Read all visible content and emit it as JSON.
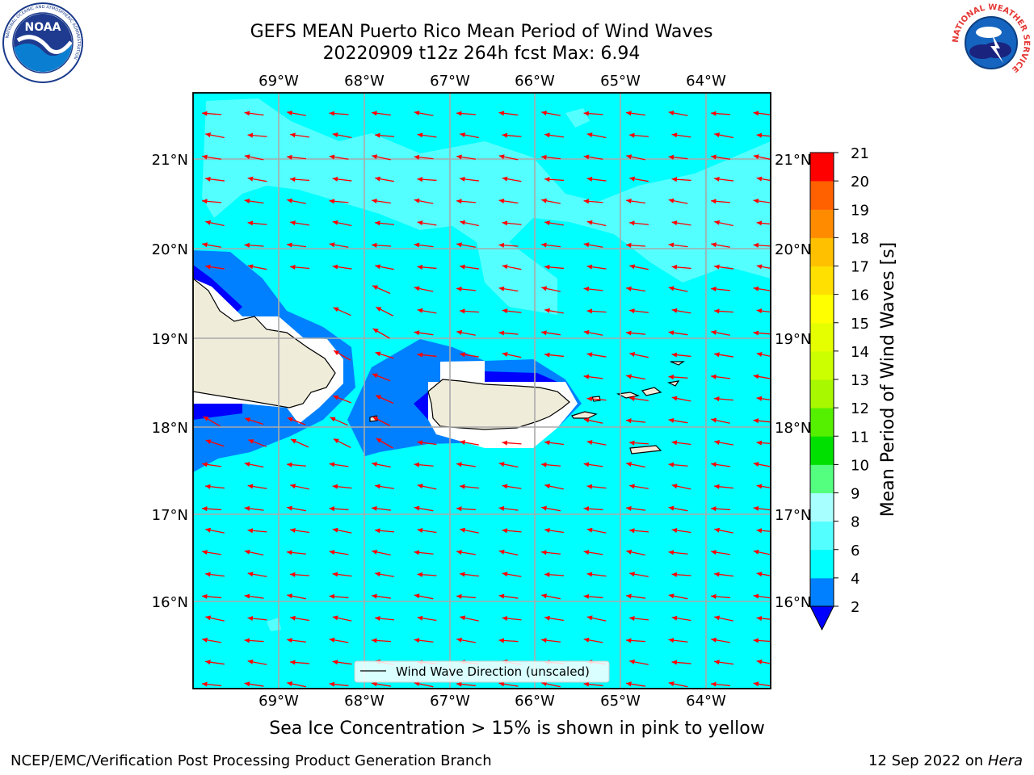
{
  "title": {
    "line1": "GEFS MEAN Puerto Rico Mean Period of Wind Waves",
    "line2": "20220909 t12z 264h fcst   Max: 6.94"
  },
  "logos": {
    "left": {
      "name": "NOAA",
      "ring_text": "NATIONAL OCEANIC AND ATMOSPHERIC ADMINISTRATION",
      "bottom_text": "U.S. DEPARTMENT OF COMMERCE"
    },
    "right": {
      "ring_text": "NATIONAL WEATHER SERVICE"
    }
  },
  "map": {
    "lon_labels": [
      "69°W",
      "68°W",
      "67°W",
      "66°W",
      "65°W",
      "64°W"
    ],
    "lat_labels": [
      "21°N",
      "20°N",
      "19°N",
      "18°N",
      "17°N",
      "16°N"
    ],
    "legend_label": "Wind Wave Direction (unscaled)",
    "colors": {
      "ocean": "#00ffff",
      "light_cyan": "#54ffff",
      "blue": "#0080ff",
      "dark_blue": "#0000ff",
      "land": "#efecda",
      "arrow": "#ff0000",
      "grid": "#aaaaaa"
    }
  },
  "colorbar": {
    "label": "Mean Period of Wind Waves [s]",
    "ticks": [
      "2",
      "4",
      "6",
      "8",
      "9",
      "10",
      "11",
      "12",
      "13",
      "14",
      "15",
      "16",
      "17",
      "18",
      "19",
      "20",
      "21"
    ],
    "colors": [
      "#0080ff",
      "#00ffff",
      "#54ffff",
      "#a8ffff",
      "#54ff80",
      "#00e000",
      "#54f000",
      "#a8f800",
      "#ccff00",
      "#e6ff00",
      "#ffff00",
      "#ffe000",
      "#ffc000",
      "#ff8c00",
      "#ff6000",
      "#ff2a00",
      "#ff0000"
    ],
    "under_color": "#0000ff"
  },
  "subnote": "Sea Ice Concentration > 15% is shown in pink to yellow",
  "footer": {
    "left": "NCEP/EMC/Verification Post Processing Product Generation Branch",
    "right_date": "12 Sep 2022 on",
    "right_host": "Hera"
  }
}
